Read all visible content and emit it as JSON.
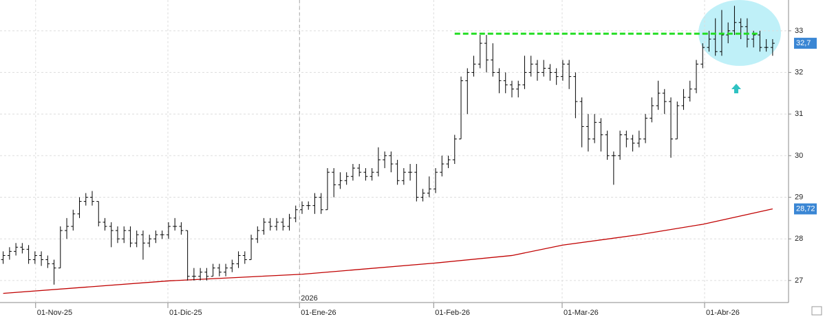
{
  "chart_data": {
    "type": "ohlc",
    "open": [
      27.5,
      27.6,
      27.7,
      27.8,
      27.75,
      27.5,
      27.6,
      27.5,
      27.4,
      27.3,
      28.2,
      28.3,
      28.6,
      28.9,
      29.0,
      28.9,
      28.4,
      28.3,
      28.2,
      28.0,
      28.2,
      27.9,
      28.1,
      27.9,
      28.0,
      28.1,
      28.1,
      28.3,
      28.3,
      28.2,
      27.1,
      27.1,
      27.2,
      27.1,
      27.3,
      27.2,
      27.3,
      27.4,
      27.6,
      27.5,
      28.0,
      28.2,
      28.4,
      28.3,
      28.4,
      28.3,
      28.5,
      28.7,
      28.8,
      28.8,
      29.0,
      28.7,
      29.6,
      29.3,
      29.4,
      29.5,
      29.7,
      29.6,
      29.5,
      29.6,
      29.9,
      30.0,
      29.8,
      29.4,
      29.6,
      29.6,
      29.0,
      29.1,
      29.2,
      29.6,
      29.8,
      29.9,
      30.4,
      31.8,
      32.0,
      32.2,
      32.7,
      32.3,
      32.0,
      31.8,
      31.7,
      31.6,
      31.7,
      32.0,
      32.2,
      32.0,
      32.1,
      32.0,
      31.9,
      32.2,
      31.9,
      31.3,
      30.7,
      30.4,
      30.8,
      30.5,
      30.0,
      30.0,
      30.5,
      30.4,
      30.3,
      30.4,
      30.9,
      31.2,
      31.5,
      31.3,
      30.4,
      31.2,
      31.4,
      31.6,
      32.2,
      32.6,
      32.8,
      32.5,
      32.9,
      33.0,
      33.2,
      33.1,
      32.8,
      32.9,
      32.6,
      32.6
    ],
    "high": [
      27.7,
      27.8,
      27.9,
      27.9,
      27.85,
      27.7,
      27.7,
      27.6,
      27.5,
      28.3,
      28.5,
      28.7,
      29.0,
      29.1,
      29.15,
      28.9,
      28.5,
      28.4,
      28.3,
      28.3,
      28.3,
      28.2,
      28.2,
      28.1,
      28.2,
      28.2,
      28.4,
      28.5,
      28.4,
      28.2,
      27.3,
      27.3,
      27.3,
      27.4,
      27.4,
      27.4,
      27.5,
      27.7,
      27.7,
      28.1,
      28.3,
      28.5,
      28.5,
      28.5,
      28.5,
      28.6,
      28.8,
      28.9,
      28.9,
      29.1,
      29.1,
      29.7,
      29.7,
      29.6,
      29.6,
      29.8,
      29.8,
      29.7,
      29.7,
      30.2,
      30.1,
      30.1,
      29.9,
      29.7,
      29.8,
      29.8,
      29.2,
      29.5,
      29.7,
      30.0,
      30.0,
      30.5,
      31.9,
      32.1,
      32.4,
      32.9,
      32.9,
      32.7,
      32.1,
      32.0,
      31.8,
      31.8,
      32.4,
      32.4,
      32.3,
      32.3,
      32.2,
      32.1,
      32.3,
      32.3,
      32.0,
      31.4,
      31.0,
      31.0,
      30.9,
      30.6,
      30.1,
      30.6,
      30.6,
      30.5,
      30.6,
      31.0,
      31.4,
      31.8,
      31.6,
      31.4,
      31.3,
      31.6,
      31.8,
      32.3,
      32.7,
      33.0,
      33.3,
      33.5,
      33.2,
      33.6,
      33.3,
      33.3,
      33.0,
      33.0,
      32.8,
      32.8
    ],
    "low": [
      27.4,
      27.5,
      27.6,
      27.65,
      27.4,
      27.4,
      27.35,
      27.3,
      26.9,
      27.3,
      28.0,
      28.2,
      28.5,
      28.8,
      28.8,
      28.3,
      28.2,
      27.8,
      27.9,
      27.9,
      27.8,
      27.8,
      27.5,
      27.8,
      27.9,
      28.0,
      28.0,
      28.2,
      28.1,
      27.0,
      27.0,
      27.0,
      27.0,
      27.1,
      27.1,
      27.1,
      27.2,
      27.3,
      27.4,
      27.5,
      27.9,
      28.1,
      28.2,
      28.2,
      28.2,
      28.2,
      28.4,
      28.6,
      28.7,
      28.6,
      28.6,
      28.7,
      29.0,
      29.2,
      29.3,
      29.4,
      29.5,
      29.4,
      29.4,
      29.5,
      29.7,
      29.6,
      29.3,
      29.3,
      29.4,
      28.9,
      28.9,
      29.0,
      29.1,
      29.5,
      29.7,
      29.8,
      30.4,
      31.0,
      31.9,
      32.1,
      32.0,
      31.9,
      31.5,
      31.5,
      31.4,
      31.4,
      31.6,
      31.9,
      31.8,
      31.9,
      31.8,
      31.7,
      31.8,
      31.6,
      30.9,
      30.2,
      30.1,
      30.3,
      30.1,
      29.9,
      29.3,
      29.9,
      30.2,
      30.1,
      30.2,
      30.3,
      30.8,
      31.1,
      31.0,
      29.95,
      30.4,
      31.1,
      31.3,
      31.5,
      32.1,
      32.5,
      32.4,
      32.4,
      32.7,
      32.9,
      32.8,
      32.6,
      32.6,
      32.5,
      32.5,
      32.4
    ],
    "close": [
      27.6,
      27.7,
      27.8,
      27.75,
      27.5,
      27.6,
      27.5,
      27.4,
      27.3,
      28.2,
      28.3,
      28.6,
      28.9,
      29.0,
      28.9,
      28.4,
      28.3,
      28.2,
      28.0,
      28.2,
      27.9,
      28.1,
      27.9,
      28.0,
      28.1,
      28.1,
      28.3,
      28.3,
      28.2,
      27.1,
      27.1,
      27.2,
      27.1,
      27.3,
      27.2,
      27.3,
      27.4,
      27.6,
      27.5,
      28.0,
      28.2,
      28.4,
      28.3,
      28.4,
      28.3,
      28.5,
      28.7,
      28.8,
      28.8,
      29.0,
      28.7,
      29.6,
      29.3,
      29.4,
      29.5,
      29.7,
      29.6,
      29.5,
      29.6,
      29.9,
      30.0,
      29.8,
      29.4,
      29.6,
      29.6,
      29.0,
      29.1,
      29.2,
      29.6,
      29.8,
      29.9,
      30.4,
      31.8,
      32.0,
      32.2,
      32.7,
      32.3,
      32.0,
      31.8,
      31.7,
      31.6,
      31.7,
      32.0,
      32.2,
      32.0,
      32.1,
      32.0,
      31.9,
      32.2,
      31.9,
      31.3,
      30.7,
      30.4,
      30.8,
      30.5,
      30.0,
      30.0,
      30.5,
      30.4,
      30.3,
      30.4,
      30.9,
      31.2,
      31.5,
      31.3,
      30.4,
      31.2,
      31.4,
      31.6,
      32.2,
      32.6,
      32.8,
      32.5,
      32.9,
      33.0,
      33.2,
      33.1,
      32.8,
      32.9,
      32.6,
      32.6,
      32.7
    ],
    "color": "#000000",
    "moving_average": {
      "x": [
        0,
        26,
        47,
        68,
        80,
        88,
        100,
        110,
        121
      ],
      "values": [
        26.69,
        26.99,
        27.15,
        27.42,
        27.6,
        27.85,
        28.1,
        28.35,
        28.72
      ],
      "color": "#c00000"
    },
    "level_line": {
      "value": 32.93,
      "x": [
        71,
        119
      ],
      "color": "#22dd22"
    },
    "price_labels": [
      {
        "value": 32.7,
        "label": "32,7",
        "color": "#3a86d4"
      },
      {
        "value": 28.72,
        "label": "28,72",
        "color": "#3a86d4"
      }
    ],
    "year_marker": {
      "value": 46.6,
      "label": "2026"
    },
    "xlim": [
      -0.5,
      123.5
    ],
    "xticks": [
      {
        "value": 5.1,
        "label": "01-Nov-25"
      },
      {
        "value": 25.9,
        "label": "01-Dic-25"
      },
      {
        "value": 46.6,
        "label": "01-Ene-26"
      },
      {
        "value": 67.7,
        "label": "01-Feb-26"
      },
      {
        "value": 87.9,
        "label": "01-Mar-26"
      },
      {
        "value": 110.3,
        "label": "01-Abr-26"
      }
    ],
    "ylim": [
      26.47,
      33.74
    ],
    "yticks": [
      27,
      28,
      29,
      30,
      31,
      32,
      33
    ],
    "grid": true
  }
}
